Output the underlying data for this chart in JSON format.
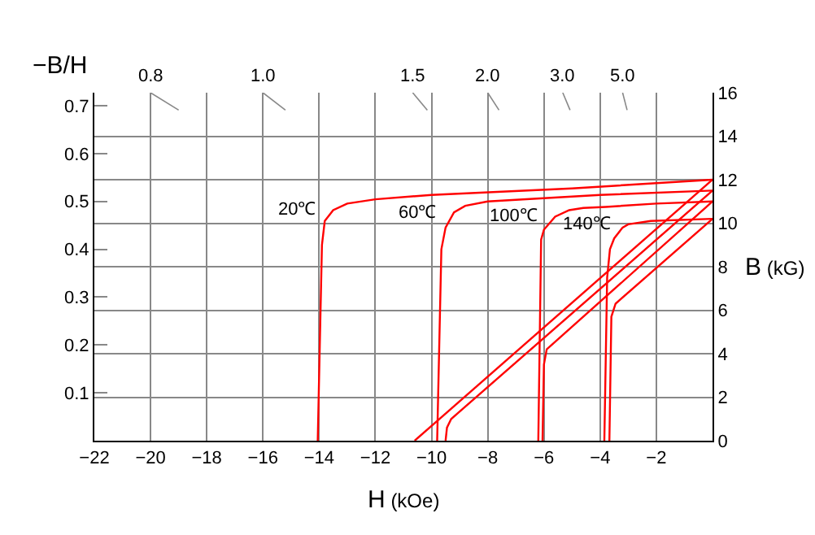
{
  "chart_data": {
    "type": "line",
    "xlabel": "H (kOe)",
    "ylabel": "B (kG)",
    "y2label": "−B/H",
    "xlim": [
      -22,
      0
    ],
    "xticks": [
      -22,
      -20,
      -18,
      -16,
      -14,
      -12,
      -10,
      -8,
      -6,
      -4,
      -2
    ],
    "ylim": [
      0,
      16
    ],
    "yticks": [
      0,
      2,
      4,
      6,
      8,
      10,
      12,
      14,
      16
    ],
    "y2lim": [
      0,
      0.7273
    ],
    "y2ticks": [
      0.1,
      0.2,
      0.3,
      0.4,
      0.5,
      0.6,
      0.7
    ],
    "grid": true,
    "legend": false,
    "marker": "none",
    "line_style": "solid",
    "series": [
      {
        "name": "20℃",
        "color": "#ff0000",
        "x": [
          0,
          -5,
          -10,
          -12,
          -13,
          -13.5,
          -13.8,
          -13.9,
          -14.05
        ],
        "values": [
          12.0,
          11.6,
          11.3,
          11.1,
          10.9,
          10.6,
          10.1,
          9.0,
          0
        ]
      },
      {
        "color": "#ff0000",
        "x": [
          0,
          -10.6
        ],
        "values": [
          12.0,
          0
        ]
      },
      {
        "name": "60℃",
        "color": "#ff0000",
        "x": [
          0,
          -4,
          -8,
          -8.8,
          -9.2,
          -9.5,
          -9.65,
          -9.8
        ],
        "values": [
          11.5,
          11.3,
          11.0,
          10.8,
          10.5,
          9.8,
          8.8,
          0
        ]
      },
      {
        "color": "#ff0000",
        "x": [
          0,
          -9.3,
          -9.45,
          -9.5
        ],
        "values": [
          11.5,
          1.0,
          0.6,
          0
        ]
      },
      {
        "name": "100℃",
        "color": "#ff0000",
        "x": [
          0,
          -2,
          -3.8,
          -4.6,
          -5.1,
          -5.6,
          -6.0,
          -6.1,
          -6.2
        ],
        "values": [
          11.0,
          10.9,
          10.75,
          10.7,
          10.6,
          10.3,
          9.7,
          9.25,
          0
        ]
      },
      {
        "color": "#ff0000",
        "x": [
          0,
          -5.9,
          -6.0,
          -6.05
        ],
        "values": [
          11.0,
          4.2,
          3.5,
          0
        ]
      },
      {
        "name": "140℃",
        "color": "#ff0000",
        "x": [
          0,
          -2.2,
          -3.0,
          -3.2,
          -3.5,
          -3.65,
          -3.75,
          -3.85
        ],
        "values": [
          10.2,
          10.1,
          9.95,
          9.8,
          9.3,
          8.8,
          7.5,
          0
        ]
      },
      {
        "color": "#ff0000",
        "x": [
          0,
          -3.45,
          -3.6,
          -3.67
        ],
        "values": [
          10.2,
          6.3,
          5.7,
          0
        ]
      },
      {
        "name": "0.8",
        "color": "#888888",
        "x": [
          -20,
          -19
        ],
        "values": [
          16,
          15.2
        ]
      },
      {
        "name": "1.0",
        "color": "#888888",
        "x": [
          -16,
          -15.2
        ],
        "values": [
          16,
          15.2
        ]
      },
      {
        "name": "1.5",
        "color": "#888888",
        "x": [
          -10.67,
          -10.15
        ],
        "values": [
          16,
          15.2
        ]
      },
      {
        "name": "2.0",
        "color": "#888888",
        "x": [
          -8,
          -7.6
        ],
        "values": [
          16,
          15.2
        ]
      },
      {
        "name": "3.0",
        "color": "#888888",
        "x": [
          -5.33,
          -5.07
        ],
        "values": [
          16,
          15.2
        ]
      },
      {
        "name": "5.0",
        "color": "#888888",
        "x": [
          -3.2,
          -3.04
        ],
        "values": [
          16,
          15.2
        ]
      }
    ]
  }
}
